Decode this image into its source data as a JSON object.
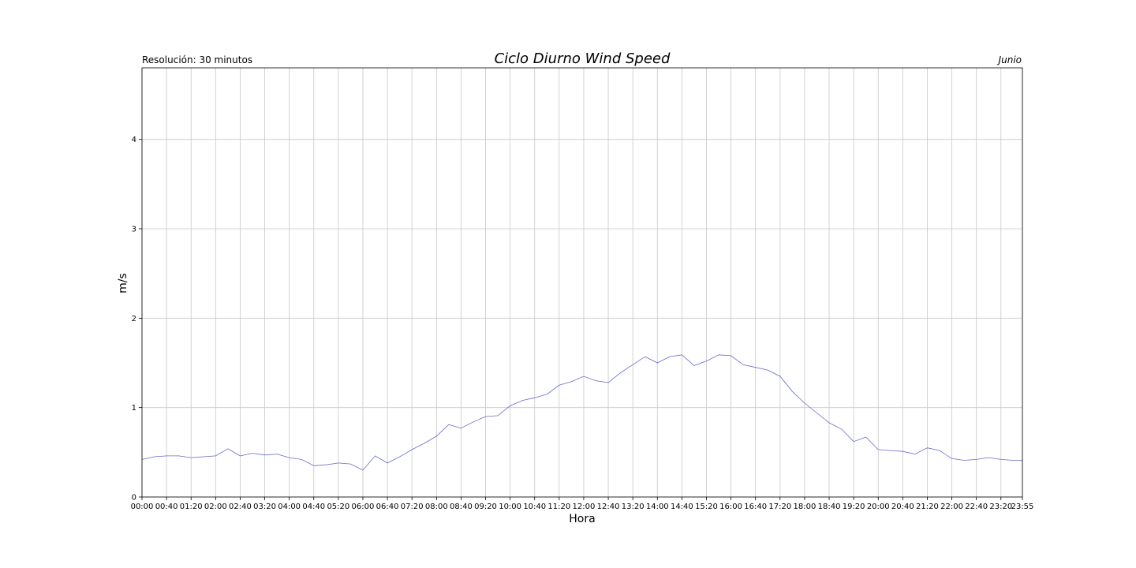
{
  "chart_data": {
    "type": "line",
    "title": "Ciclo Diurno Wind Speed",
    "subtitle": "Resolución: 30 minutos",
    "period": "Junio",
    "xlabel": "Hora",
    "ylabel": "m/s",
    "ylim": [
      0,
      4.8
    ],
    "yticks": [
      "0",
      "1",
      "2",
      "3",
      "4"
    ],
    "xticks": [
      "00:00",
      "00:40",
      "01:20",
      "02:00",
      "02:40",
      "03:20",
      "04:00",
      "04:40",
      "05:20",
      "06:00",
      "06:40",
      "07:20",
      "08:00",
      "08:40",
      "09:20",
      "10:00",
      "10:40",
      "11:20",
      "12:00",
      "12:40",
      "13:20",
      "14:00",
      "14:40",
      "15:20",
      "16:00",
      "16:40",
      "17:20",
      "18:00",
      "18:40",
      "19:20",
      "20:00",
      "20:40",
      "21:20",
      "22:00",
      "22:40",
      "23:20",
      "23:55"
    ],
    "grid": true,
    "line_color": "#6a6acc",
    "series": [
      {
        "x": [
          "00:00",
          "00:20",
          "00:40",
          "01:00",
          "01:20",
          "01:40",
          "02:00",
          "02:20",
          "02:40",
          "03:00",
          "03:20",
          "03:40",
          "04:00",
          "04:20",
          "04:40",
          "05:00",
          "05:20",
          "05:40",
          "06:00",
          "06:20",
          "06:40",
          "07:00",
          "07:20",
          "07:40",
          "08:00",
          "08:20",
          "08:40",
          "09:00",
          "09:20",
          "09:40",
          "10:00",
          "10:20",
          "10:40",
          "11:00",
          "11:20",
          "11:40",
          "12:00",
          "12:20",
          "12:40",
          "13:00",
          "13:20",
          "13:40",
          "14:00",
          "14:20",
          "14:40",
          "15:00",
          "15:20",
          "15:40",
          "16:00",
          "16:20",
          "16:40",
          "17:00",
          "17:20",
          "17:40",
          "18:00",
          "18:20",
          "18:40",
          "19:00",
          "19:20",
          "19:40",
          "20:00",
          "20:20",
          "20:40",
          "21:00",
          "21:20",
          "21:40",
          "22:00",
          "22:20",
          "22:40",
          "23:00",
          "23:20",
          "23:40",
          "23:55"
        ],
        "values": [
          0.42,
          0.45,
          0.46,
          0.46,
          0.44,
          0.45,
          0.46,
          0.54,
          0.46,
          0.49,
          0.47,
          0.48,
          0.44,
          0.42,
          0.35,
          0.36,
          0.38,
          0.37,
          0.3,
          0.46,
          0.38,
          0.45,
          0.53,
          0.6,
          0.68,
          0.81,
          0.77,
          0.84,
          0.9,
          0.91,
          1.02,
          1.08,
          1.11,
          1.15,
          1.25,
          1.29,
          1.35,
          1.3,
          1.28,
          1.39,
          1.48,
          1.57,
          1.5,
          1.57,
          1.59,
          1.47,
          1.52,
          1.59,
          1.58,
          1.48,
          1.45,
          1.42,
          1.35,
          1.18,
          1.05,
          0.94,
          0.83,
          0.76,
          0.62,
          0.67,
          0.53,
          0.52,
          0.51,
          0.48,
          0.55,
          0.52,
          0.43,
          0.41,
          0.42,
          0.44,
          0.42,
          0.41,
          0.41
        ]
      }
    ]
  }
}
